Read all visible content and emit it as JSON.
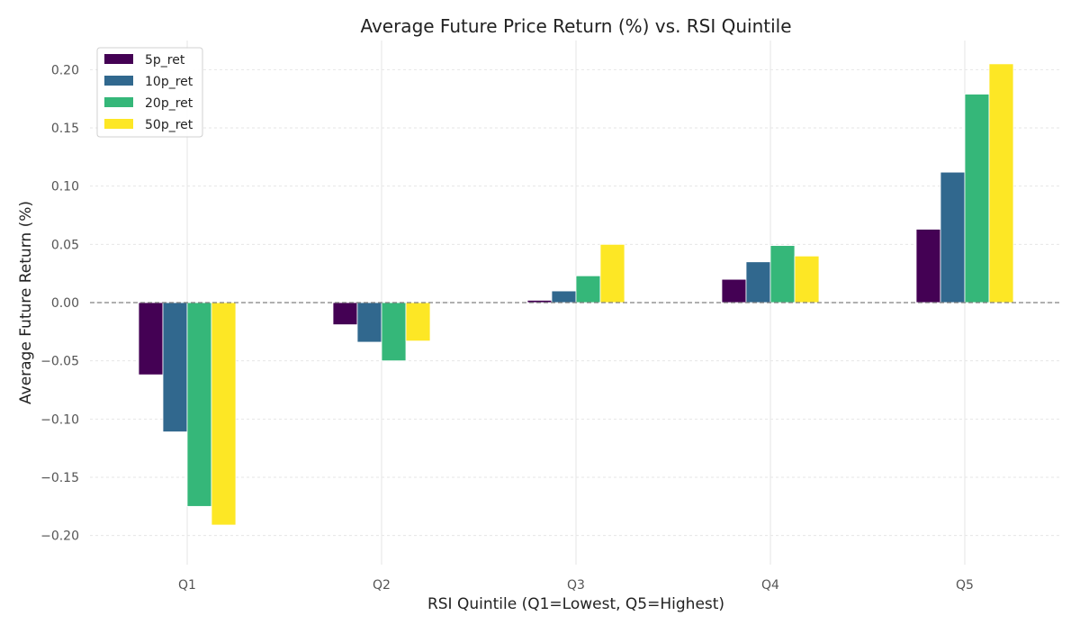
{
  "chart_data": {
    "type": "bar",
    "title": "Average Future Price Return (%) vs. RSI Quintile",
    "xlabel": "RSI Quintile (Q1=Lowest, Q5=Highest)",
    "ylabel": "Average Future Return (%)",
    "categories": [
      "Q1",
      "Q2",
      "Q3",
      "Q4",
      "Q5"
    ],
    "ylim": [
      -0.225,
      0.225
    ],
    "yticks": [
      0.2,
      0.15,
      0.1,
      0.05,
      0.0,
      -0.05,
      -0.1,
      -0.15,
      -0.2
    ],
    "ytick_labels": [
      "0.20",
      "0.15",
      "0.10",
      "0.05",
      "0.00",
      "−0.05",
      "−0.10",
      "−0.15",
      "−0.20"
    ],
    "grid": true,
    "legend_position": "top-left",
    "zero_line": true,
    "series": [
      {
        "name": "5p_ret",
        "color": "#440154",
        "values": [
          -0.062,
          -0.019,
          0.002,
          0.02,
          0.063
        ]
      },
      {
        "name": "10p_ret",
        "color": "#31688e",
        "values": [
          -0.111,
          -0.034,
          0.01,
          0.035,
          0.112
        ]
      },
      {
        "name": "20p_ret",
        "color": "#35b779",
        "values": [
          -0.175,
          -0.05,
          0.023,
          0.049,
          0.179
        ]
      },
      {
        "name": "50p_ret",
        "color": "#fde725",
        "values": [
          -0.191,
          -0.033,
          0.05,
          0.04,
          0.205
        ]
      }
    ]
  }
}
